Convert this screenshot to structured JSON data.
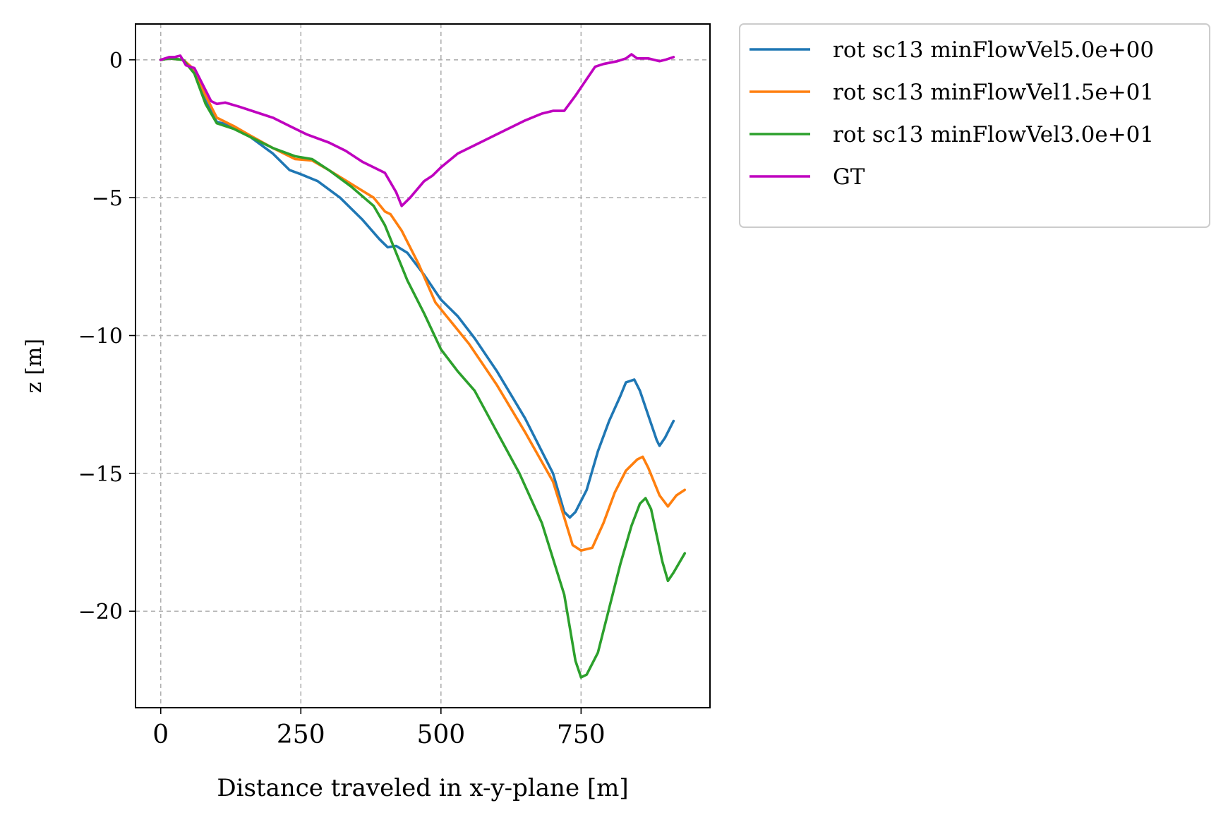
{
  "chart_data": {
    "type": "line",
    "title": "",
    "xlabel": "Distance traveled in x-y-plane [m]",
    "ylabel": "z [m]",
    "xlim": [
      -45,
      980
    ],
    "ylim": [
      -23.5,
      1.3
    ],
    "xticks": [
      0,
      250,
      500,
      750
    ],
    "yticks": [
      0,
      -5,
      -10,
      -15,
      -20
    ],
    "xtick_labels": [
      "0",
      "250",
      "500",
      "750"
    ],
    "ytick_labels": [
      "0",
      "−5",
      "−10",
      "−15",
      "−20"
    ],
    "grid": true,
    "legend_position": "outside-top-right",
    "series": [
      {
        "name": "rot sc13 minFlowVel5.0e+00",
        "color": "#1f77b4",
        "points": [
          [
            0,
            0
          ],
          [
            15,
            0.05
          ],
          [
            40,
            0
          ],
          [
            60,
            -0.4
          ],
          [
            80,
            -1.5
          ],
          [
            100,
            -2.25
          ],
          [
            130,
            -2.4
          ],
          [
            160,
            -2.8
          ],
          [
            200,
            -3.4
          ],
          [
            230,
            -4.0
          ],
          [
            250,
            -4.15
          ],
          [
            280,
            -4.4
          ],
          [
            320,
            -5.0
          ],
          [
            360,
            -5.8
          ],
          [
            390,
            -6.5
          ],
          [
            395,
            -6.6
          ],
          [
            405,
            -6.8
          ],
          [
            420,
            -6.75
          ],
          [
            440,
            -7.0
          ],
          [
            470,
            -7.8
          ],
          [
            500,
            -8.7
          ],
          [
            530,
            -9.3
          ],
          [
            560,
            -10.1
          ],
          [
            600,
            -11.3
          ],
          [
            650,
            -13.0
          ],
          [
            700,
            -15.0
          ],
          [
            720,
            -16.4
          ],
          [
            730,
            -16.6
          ],
          [
            740,
            -16.4
          ],
          [
            760,
            -15.6
          ],
          [
            780,
            -14.2
          ],
          [
            800,
            -13.1
          ],
          [
            820,
            -12.2
          ],
          [
            830,
            -11.7
          ],
          [
            845,
            -11.6
          ],
          [
            855,
            -12.0
          ],
          [
            870,
            -12.9
          ],
          [
            885,
            -13.8
          ],
          [
            890,
            -14.0
          ],
          [
            900,
            -13.7
          ],
          [
            915,
            -13.1
          ]
        ]
      },
      {
        "name": "rot sc13 minFlowVel1.5e+01",
        "color": "#ff7f0e",
        "points": [
          [
            0,
            0
          ],
          [
            15,
            0.05
          ],
          [
            40,
            0
          ],
          [
            60,
            -0.35
          ],
          [
            80,
            -1.3
          ],
          [
            100,
            -2.1
          ],
          [
            130,
            -2.4
          ],
          [
            160,
            -2.75
          ],
          [
            200,
            -3.2
          ],
          [
            240,
            -3.6
          ],
          [
            270,
            -3.65
          ],
          [
            300,
            -4.0
          ],
          [
            340,
            -4.5
          ],
          [
            380,
            -5.0
          ],
          [
            400,
            -5.5
          ],
          [
            410,
            -5.6
          ],
          [
            430,
            -6.2
          ],
          [
            460,
            -7.4
          ],
          [
            490,
            -8.8
          ],
          [
            510,
            -9.3
          ],
          [
            550,
            -10.3
          ],
          [
            600,
            -11.8
          ],
          [
            650,
            -13.5
          ],
          [
            700,
            -15.3
          ],
          [
            720,
            -16.6
          ],
          [
            735,
            -17.6
          ],
          [
            750,
            -17.8
          ],
          [
            770,
            -17.7
          ],
          [
            790,
            -16.8
          ],
          [
            810,
            -15.7
          ],
          [
            830,
            -14.9
          ],
          [
            850,
            -14.5
          ],
          [
            860,
            -14.4
          ],
          [
            870,
            -14.8
          ],
          [
            890,
            -15.8
          ],
          [
            905,
            -16.2
          ],
          [
            920,
            -15.8
          ],
          [
            935,
            -15.6
          ]
        ]
      },
      {
        "name": "rot sc13 minFlowVel3.0e+01",
        "color": "#2ca02c",
        "points": [
          [
            0,
            0
          ],
          [
            15,
            0.05
          ],
          [
            40,
            0
          ],
          [
            60,
            -0.5
          ],
          [
            80,
            -1.6
          ],
          [
            100,
            -2.3
          ],
          [
            130,
            -2.5
          ],
          [
            160,
            -2.8
          ],
          [
            200,
            -3.2
          ],
          [
            240,
            -3.5
          ],
          [
            270,
            -3.6
          ],
          [
            300,
            -4.0
          ],
          [
            340,
            -4.6
          ],
          [
            380,
            -5.3
          ],
          [
            400,
            -6.0
          ],
          [
            420,
            -7.0
          ],
          [
            440,
            -8.0
          ],
          [
            470,
            -9.2
          ],
          [
            500,
            -10.5
          ],
          [
            530,
            -11.3
          ],
          [
            560,
            -12.0
          ],
          [
            600,
            -13.5
          ],
          [
            640,
            -15.0
          ],
          [
            680,
            -16.8
          ],
          [
            720,
            -19.4
          ],
          [
            740,
            -21.8
          ],
          [
            750,
            -22.4
          ],
          [
            760,
            -22.3
          ],
          [
            780,
            -21.5
          ],
          [
            800,
            -19.9
          ],
          [
            820,
            -18.3
          ],
          [
            840,
            -16.9
          ],
          [
            855,
            -16.1
          ],
          [
            865,
            -15.9
          ],
          [
            875,
            -16.3
          ],
          [
            895,
            -18.2
          ],
          [
            905,
            -18.9
          ],
          [
            915,
            -18.6
          ],
          [
            935,
            -17.9
          ]
        ]
      },
      {
        "name": "GT",
        "color": "#bf00bf",
        "points": [
          [
            0,
            0
          ],
          [
            15,
            0.1
          ],
          [
            25,
            0.1
          ],
          [
            35,
            0.15
          ],
          [
            45,
            -0.2
          ],
          [
            60,
            -0.3
          ],
          [
            75,
            -0.9
          ],
          [
            90,
            -1.5
          ],
          [
            100,
            -1.6
          ],
          [
            115,
            -1.55
          ],
          [
            140,
            -1.7
          ],
          [
            170,
            -1.9
          ],
          [
            200,
            -2.1
          ],
          [
            230,
            -2.4
          ],
          [
            260,
            -2.7
          ],
          [
            300,
            -3.0
          ],
          [
            330,
            -3.3
          ],
          [
            360,
            -3.7
          ],
          [
            400,
            -4.1
          ],
          [
            420,
            -4.8
          ],
          [
            430,
            -5.3
          ],
          [
            445,
            -5.0
          ],
          [
            470,
            -4.4
          ],
          [
            485,
            -4.2
          ],
          [
            500,
            -3.9
          ],
          [
            530,
            -3.4
          ],
          [
            560,
            -3.1
          ],
          [
            600,
            -2.7
          ],
          [
            650,
            -2.2
          ],
          [
            680,
            -1.95
          ],
          [
            700,
            -1.85
          ],
          [
            720,
            -1.85
          ],
          [
            740,
            -1.3
          ],
          [
            760,
            -0.7
          ],
          [
            775,
            -0.25
          ],
          [
            790,
            -0.15
          ],
          [
            815,
            -0.05
          ],
          [
            830,
            0.05
          ],
          [
            840,
            0.2
          ],
          [
            850,
            0.05
          ],
          [
            870,
            0.05
          ],
          [
            890,
            -0.05
          ],
          [
            900,
            0
          ],
          [
            915,
            0.1
          ]
        ]
      }
    ]
  }
}
